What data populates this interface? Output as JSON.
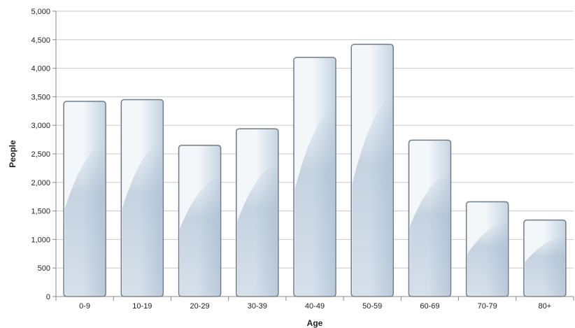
{
  "chart_data": {
    "type": "bar",
    "title": "",
    "xlabel": "Age",
    "ylabel": "People",
    "categories": [
      "0-9",
      "10-19",
      "20-29",
      "30-39",
      "40-49",
      "50-59",
      "60-69",
      "70-79",
      "80+"
    ],
    "values": [
      3420,
      3450,
      2650,
      2940,
      4190,
      4420,
      2740,
      1660,
      1340
    ],
    "ylim": [
      0,
      5000
    ],
    "yticks": [
      0,
      500,
      1000,
      1500,
      2000,
      2500,
      3000,
      3500,
      4000,
      4500,
      5000
    ],
    "ytick_labels": [
      "0",
      "500",
      "1,000",
      "1,500",
      "2,000",
      "2,500",
      "3,000",
      "3,500",
      "4,000",
      "4,500",
      "5,000"
    ],
    "grid": true,
    "legend": "none",
    "colors": {
      "bar_light": "#f4f7fa",
      "bar_mid": "#c6d4e2",
      "bar_dark": "#9fb5cb",
      "bar_stroke": "#6f7c88",
      "grid": "#c9c9c9",
      "axis": "#888888"
    }
  }
}
